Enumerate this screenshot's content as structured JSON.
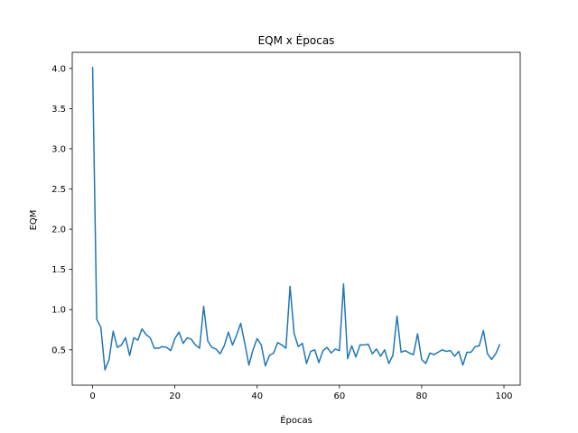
{
  "chart_data": {
    "type": "line",
    "title": "EQM x Épocas",
    "xlabel": "Épocas",
    "ylabel": "EQM",
    "xlim": [
      -4.95,
      103.95
    ],
    "ylim": [
      0.06,
      4.2
    ],
    "xticks": [
      0,
      20,
      40,
      60,
      80,
      100
    ],
    "yticks": [
      0.5,
      1.0,
      1.5,
      2.0,
      2.5,
      3.0,
      3.5,
      4.0
    ],
    "xtick_labels": [
      "0",
      "20",
      "40",
      "60",
      "80",
      "100"
    ],
    "ytick_labels": [
      "0.5",
      "1.0",
      "1.5",
      "2.0",
      "2.5",
      "3.0",
      "3.5",
      "4.0"
    ],
    "grid": false,
    "line_color": "#1f77b4",
    "series": [
      {
        "x": [
          0,
          1,
          2,
          3,
          4,
          5,
          6,
          7,
          8,
          9,
          10,
          11,
          12,
          13,
          14,
          15,
          16,
          17,
          18,
          19,
          20,
          21,
          22,
          23,
          24,
          25,
          26,
          27,
          28,
          29,
          30,
          31,
          32,
          33,
          34,
          35,
          36,
          37,
          38,
          39,
          40,
          41,
          42,
          43,
          44,
          45,
          46,
          47,
          48,
          49,
          50,
          51,
          52,
          53,
          54,
          55,
          56,
          57,
          58,
          59,
          60,
          61,
          62,
          63,
          64,
          65,
          66,
          67,
          68,
          69,
          70,
          71,
          72,
          73,
          74,
          75,
          76,
          77,
          78,
          79,
          80,
          81,
          82,
          83,
          84,
          85,
          86,
          87,
          88,
          89,
          90,
          91,
          92,
          93,
          94,
          95,
          96,
          97,
          98,
          99
        ],
        "values": [
          4.02,
          0.88,
          0.78,
          0.25,
          0.38,
          0.73,
          0.53,
          0.56,
          0.65,
          0.43,
          0.65,
          0.62,
          0.76,
          0.69,
          0.65,
          0.52,
          0.52,
          0.54,
          0.53,
          0.49,
          0.64,
          0.72,
          0.58,
          0.65,
          0.63,
          0.56,
          0.52,
          1.04,
          0.61,
          0.53,
          0.51,
          0.45,
          0.55,
          0.72,
          0.56,
          0.68,
          0.83,
          0.58,
          0.31,
          0.5,
          0.64,
          0.56,
          0.3,
          0.43,
          0.46,
          0.59,
          0.56,
          0.52,
          1.29,
          0.7,
          0.54,
          0.58,
          0.33,
          0.48,
          0.5,
          0.34,
          0.49,
          0.53,
          0.46,
          0.51,
          0.49,
          1.32,
          0.39,
          0.55,
          0.41,
          0.56,
          0.56,
          0.57,
          0.45,
          0.51,
          0.42,
          0.5,
          0.33,
          0.43,
          0.92,
          0.47,
          0.49,
          0.46,
          0.44,
          0.7,
          0.38,
          0.33,
          0.46,
          0.44,
          0.47,
          0.5,
          0.48,
          0.49,
          0.42,
          0.48,
          0.31,
          0.47,
          0.47,
          0.54,
          0.55,
          0.74,
          0.45,
          0.38,
          0.45,
          0.57
        ]
      }
    ]
  }
}
